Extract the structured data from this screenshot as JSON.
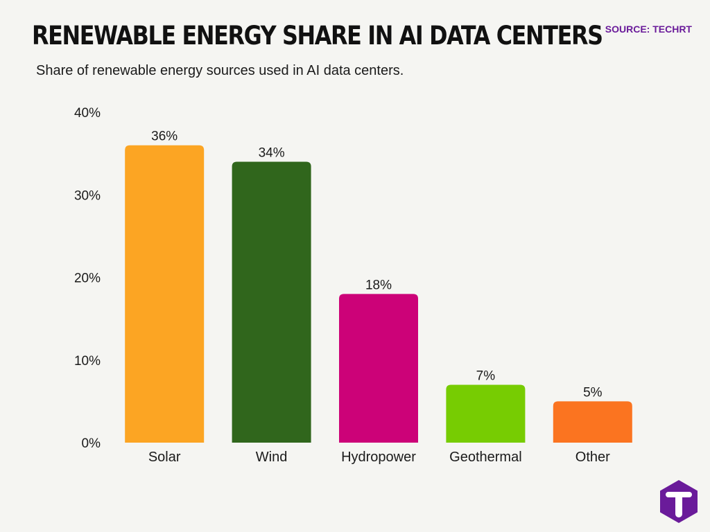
{
  "header": {
    "title": "RENEWABLE ENERGY SHARE IN AI DATA CENTERS",
    "subtitle": "Share of renewable energy sources used in AI data centers.",
    "source": "SOURCE: TECHRT"
  },
  "logo": {
    "icon": "techrt-t-logo-icon",
    "color": "#6a1b9a"
  },
  "colors": {
    "background": "#f5f5f2",
    "text": "#1a1a1a",
    "source": "#6a1b9a"
  },
  "chart_data": {
    "type": "bar",
    "title": "",
    "xlabel": "",
    "ylabel": "",
    "categories": [
      "Solar",
      "Wind",
      "Hydropower",
      "Geothermal",
      "Other"
    ],
    "values": [
      36,
      34,
      18,
      7,
      5
    ],
    "value_labels": [
      "36%",
      "34%",
      "18%",
      "7%",
      "5%"
    ],
    "bar_colors": [
      "#fca523",
      "#30661c",
      "#cc0278",
      "#77cc02",
      "#fb7420"
    ],
    "ylim": [
      0,
      40
    ],
    "yticks": [
      0,
      10,
      20,
      30,
      40
    ],
    "ytick_labels": [
      "0%",
      "10%",
      "20%",
      "30%",
      "40%"
    ],
    "grid": false,
    "legend": "none"
  }
}
